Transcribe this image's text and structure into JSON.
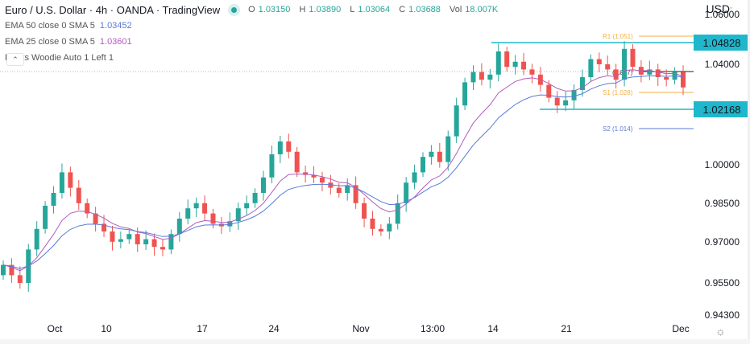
{
  "header": {
    "title": "Euro / U.S. Dollar · 4h · OANDA · TradingView",
    "ohlc": {
      "open_label": "O",
      "open": "1.03150",
      "high_label": "H",
      "high": "1.03890",
      "low_label": "L",
      "low": "1.03064",
      "close_label": "C",
      "close": "1.03688",
      "vol_label": "Vol",
      "vol": "18.007K"
    },
    "indicators": [
      {
        "name": "EMA 50 close 0 SMA 5",
        "value": "1.03452"
      },
      {
        "name": "EMA 25 close 0 SMA 5",
        "value": "1.03601"
      },
      {
        "name": "Pivots Woodie Auto 1 Left 1",
        "value": ""
      }
    ],
    "collapse_icon": "chevron-up-icon"
  },
  "price_axis": {
    "currency": "USD",
    "currency_dropdown_icon": "chevron-down-icon",
    "ticks": [
      "1.06000",
      "1.04000",
      "1.00000",
      "0.98500",
      "0.97000",
      "0.95500",
      "0.94300"
    ],
    "tags": [
      {
        "value": "1.04828",
        "color": "#1fb7cc"
      },
      {
        "value": "1.02168",
        "color": "#1fb7cc"
      }
    ]
  },
  "time_axis": {
    "ticks": [
      "Oct",
      "10",
      "17",
      "24",
      "Nov",
      "13:00",
      "14",
      "21",
      "Dec"
    ],
    "settings_icon": "gear-icon"
  },
  "pivot_labels": {
    "r1": "R1 (1.051)",
    "p": "(1.037)",
    "s1": "S1 (1.028)",
    "s2": "S2 (1.014)"
  },
  "colors": {
    "up": "#26a69a",
    "down": "#ef5350",
    "ema50": "#5b7bd5",
    "ema25": "#b05bbd",
    "pivot_r": "#f5b041",
    "pivot_s2": "#5b7bd5",
    "hline": "#1fb7cc"
  },
  "chart_data": {
    "type": "candlestick",
    "title": "Euro / U.S. Dollar · 4h · OANDA · TradingView",
    "xlabel": "",
    "ylabel": "USD",
    "ylim": [
      0.943,
      1.06
    ],
    "x_ticks": [
      "Oct",
      "10",
      "17",
      "24",
      "Nov",
      "13:00",
      "14",
      "21",
      "Dec"
    ],
    "y_ticks": [
      1.04,
      1.0,
      0.985,
      0.97,
      0.955,
      0.943
    ],
    "close_series_approx": [
      0.962,
      0.958,
      0.955,
      0.968,
      0.976,
      0.985,
      0.99,
      0.998,
      0.992,
      0.986,
      0.982,
      0.978,
      0.975,
      0.971,
      0.972,
      0.974,
      0.97,
      0.972,
      0.969,
      0.968,
      0.974,
      0.98,
      0.984,
      0.986,
      0.982,
      0.978,
      0.977,
      0.979,
      0.984,
      0.986,
      0.99,
      0.996,
      1.005,
      1.01,
      1.006,
      0.998,
      0.997,
      0.996,
      0.994,
      0.992,
      0.99,
      0.993,
      0.986,
      0.98,
      0.976,
      0.975,
      0.978,
      0.986,
      0.994,
      0.998,
      1.004,
      1.006,
      1.002,
      1.012,
      1.024,
      1.033,
      1.037,
      1.034,
      1.036,
      1.045,
      1.039,
      1.041,
      1.038,
      1.036,
      1.032,
      1.027,
      1.024,
      1.026,
      1.03,
      1.035,
      1.042,
      1.04,
      1.038,
      1.034,
      1.046,
      1.039,
      1.036,
      1.038,
      1.035,
      1.034,
      1.037,
      1.031
    ],
    "ema50_value": 1.03452,
    "ema25_value": 1.03601,
    "horizontal_lines": [
      {
        "label": "1.04828",
        "price": 1.04828
      },
      {
        "label": "1.02168",
        "price": 1.02168
      }
    ],
    "pivots": {
      "R1": 1.051,
      "P": 1.037,
      "S1": 1.028,
      "S2": 1.014
    },
    "last_ohlc": {
      "open": 1.0315,
      "high": 1.0389,
      "low": 1.03064,
      "close": 1.03688,
      "volume": "18.007K"
    }
  }
}
